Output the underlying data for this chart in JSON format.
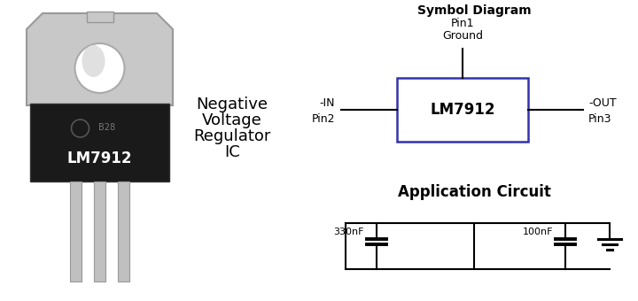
{
  "bg_color": "#ffffff",
  "title_symbol": "Symbol Diagram",
  "title_app": "Application Circuit",
  "chip_label": "LM7912",
  "pin1_label1": "Pin1",
  "pin1_label2": "Ground",
  "pin2_label1": "-IN",
  "pin2_label2": "Pin2",
  "pin3_label1": "-OUT",
  "pin3_label2": "Pin3",
  "neg_text1": "Negative",
  "neg_text2": "Voltage",
  "neg_text3": "Regulator",
  "neg_text4": "IC",
  "cap1_label": "330nF",
  "cap2_label": "100nF",
  "box_color": "#3333aa",
  "line_color": "#000000",
  "text_color": "#000000",
  "font_family": "DejaVu Sans"
}
